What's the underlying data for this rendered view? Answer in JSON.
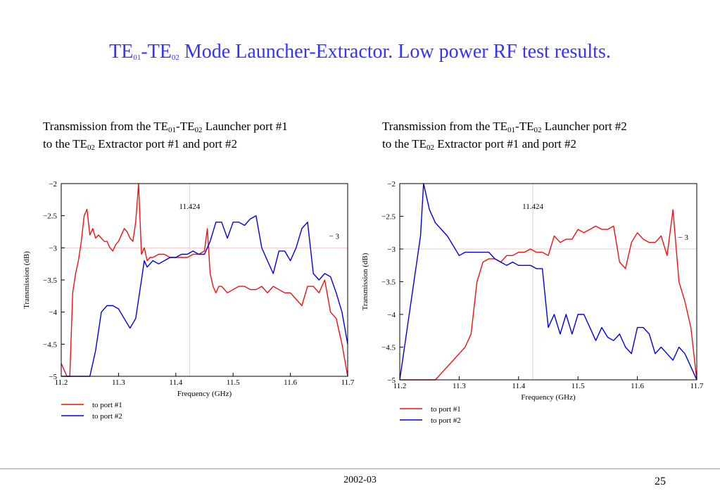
{
  "title": {
    "part1": "TE",
    "sub1": "01",
    "part2": "-TE",
    "sub2": "02",
    "part3": " Mode Launcher-Extractor. Low power RF test results."
  },
  "subtitles": [
    {
      "t1": "Transmission from the TE",
      "s1": "01",
      "t2": "-TE",
      "s2": "02",
      "t3": " Launcher port #1",
      "t4": "to the TE",
      "s3": "02",
      "t5": " Extractor port #1 and port #2"
    },
    {
      "t1": "Transmission from the TE",
      "s1": "01",
      "t2": "-TE",
      "s2": "02",
      "t3": " Launcher port #2",
      "t4": "to the TE",
      "s3": "02",
      "t5": " Extractor port #1 and port #2"
    }
  ],
  "colors": {
    "series1": "#ee1111",
    "series2": "#0000dd",
    "gridline": "#f0c8c8",
    "title": "#3333ff"
  },
  "chart_data": [
    {
      "type": "line",
      "xlabel": "Frequency (GHz)",
      "ylabel": "Transmission (dB)",
      "xlim": [
        11.2,
        11.7
      ],
      "ylim": [
        -5,
        -2
      ],
      "xticks": [
        "11.2",
        "11.3",
        "11.4",
        "11.5",
        "11.6",
        "11.7"
      ],
      "yticks": [
        "−2",
        "−2.5",
        "−3",
        "−3.5",
        "−4",
        "−4.5",
        "−5"
      ],
      "vline": {
        "x": 11.424,
        "label": "11.424"
      },
      "hline": {
        "y": -3,
        "label": "− 3"
      },
      "grid": false,
      "legend": "bottom-left",
      "series": [
        {
          "name": "to port #1",
          "x": [
            11.2,
            11.205,
            11.21,
            11.215,
            11.22,
            11.225,
            11.23,
            11.235,
            11.24,
            11.245,
            11.25,
            11.255,
            11.26,
            11.265,
            11.27,
            11.275,
            11.28,
            11.285,
            11.29,
            11.295,
            11.3,
            11.305,
            11.31,
            11.315,
            11.32,
            11.325,
            11.33,
            11.335,
            11.34,
            11.345,
            11.35,
            11.355,
            11.36,
            11.37,
            11.38,
            11.39,
            11.4,
            11.41,
            11.42,
            11.43,
            11.44,
            11.45,
            11.455,
            11.46,
            11.465,
            11.47,
            11.475,
            11.48,
            11.49,
            11.5,
            11.51,
            11.52,
            11.53,
            11.54,
            11.55,
            11.56,
            11.57,
            11.58,
            11.59,
            11.6,
            11.61,
            11.62,
            11.63,
            11.64,
            11.65,
            11.66,
            11.67,
            11.68,
            11.69,
            11.7
          ],
          "y": [
            -4.8,
            -4.9,
            -5,
            -5,
            -3.7,
            -3.4,
            -3.2,
            -2.9,
            -2.5,
            -2.4,
            -2.8,
            -2.7,
            -2.85,
            -2.8,
            -2.85,
            -2.9,
            -2.9,
            -3.0,
            -3.05,
            -2.95,
            -2.9,
            -2.8,
            -2.7,
            -2.75,
            -2.85,
            -2.9,
            -2.6,
            -2.0,
            -3.1,
            -3.0,
            -3.2,
            -3.15,
            -3.15,
            -3.1,
            -3.1,
            -3.15,
            -3.15,
            -3.15,
            -3.15,
            -3.1,
            -3.1,
            -3.05,
            -2.7,
            -3.4,
            -3.6,
            -3.7,
            -3.6,
            -3.6,
            -3.7,
            -3.65,
            -3.6,
            -3.6,
            -3.65,
            -3.65,
            -3.6,
            -3.7,
            -3.6,
            -3.65,
            -3.7,
            -3.7,
            -3.8,
            -3.9,
            -3.6,
            -3.6,
            -3.7,
            -3.5,
            -4.0,
            -4.1,
            -4.5,
            -5
          ]
        },
        {
          "name": "to port #2",
          "x": [
            11.2,
            11.23,
            11.25,
            11.26,
            11.27,
            11.28,
            11.29,
            11.3,
            11.31,
            11.32,
            11.33,
            11.34,
            11.345,
            11.35,
            11.36,
            11.37,
            11.38,
            11.39,
            11.4,
            11.41,
            11.42,
            11.43,
            11.44,
            11.45,
            11.46,
            11.47,
            11.48,
            11.49,
            11.5,
            11.51,
            11.52,
            11.53,
            11.54,
            11.55,
            11.56,
            11.57,
            11.58,
            11.59,
            11.6,
            11.61,
            11.62,
            11.63,
            11.64,
            11.65,
            11.66,
            11.67,
            11.68,
            11.69,
            11.7
          ],
          "y": [
            -5,
            -5,
            -5,
            -4.6,
            -4.0,
            -3.9,
            -3.9,
            -3.95,
            -4.1,
            -4.25,
            -4.1,
            -3.5,
            -3.2,
            -3.3,
            -3.2,
            -3.25,
            -3.2,
            -3.15,
            -3.15,
            -3.1,
            -3.1,
            -3.05,
            -3.1,
            -3.1,
            -2.9,
            -2.6,
            -2.6,
            -2.85,
            -2.6,
            -2.6,
            -2.65,
            -2.55,
            -2.5,
            -3.0,
            -3.2,
            -3.4,
            -3.05,
            -3.05,
            -3.2,
            -3.0,
            -2.7,
            -2.6,
            -3.4,
            -3.5,
            -3.4,
            -3.45,
            -3.7,
            -4.0,
            -4.5
          ]
        }
      ]
    },
    {
      "type": "line",
      "xlabel": "Frequency (GHz)",
      "ylabel": "Transmission (dB)",
      "xlim": [
        11.2,
        11.7
      ],
      "ylim": [
        -5,
        -2
      ],
      "xticks": [
        "11.2",
        "11.3",
        "11.4",
        "11.5",
        "11.6",
        "11.7"
      ],
      "yticks": [
        "−2",
        "−2.5",
        "−3",
        "−3.5",
        "−4",
        "−4.5",
        "−5"
      ],
      "vline": {
        "x": 11.424,
        "label": "11.424"
      },
      "hline": {
        "y": -3,
        "label": "− 3"
      },
      "grid": false,
      "legend": "bottom-left",
      "series": [
        {
          "name": "to port #1",
          "x": [
            11.2,
            11.24,
            11.26,
            11.27,
            11.28,
            11.29,
            11.3,
            11.31,
            11.32,
            11.33,
            11.34,
            11.35,
            11.36,
            11.37,
            11.38,
            11.39,
            11.4,
            11.41,
            11.42,
            11.43,
            11.44,
            11.45,
            11.46,
            11.47,
            11.48,
            11.49,
            11.5,
            11.51,
            11.52,
            11.53,
            11.54,
            11.55,
            11.56,
            11.57,
            11.58,
            11.59,
            11.6,
            11.61,
            11.62,
            11.63,
            11.64,
            11.65,
            11.66,
            11.67,
            11.68,
            11.69,
            11.7
          ],
          "y": [
            -5,
            -5,
            -5,
            -4.9,
            -4.8,
            -4.7,
            -4.6,
            -4.5,
            -4.3,
            -3.5,
            -3.2,
            -3.15,
            -3.15,
            -3.2,
            -3.1,
            -3.1,
            -3.05,
            -3.05,
            -3.0,
            -3.05,
            -3.05,
            -3.1,
            -2.8,
            -2.9,
            -2.85,
            -2.85,
            -2.7,
            -2.75,
            -2.7,
            -2.65,
            -2.7,
            -2.7,
            -2.65,
            -3.2,
            -3.3,
            -2.9,
            -2.75,
            -2.85,
            -2.9,
            -2.9,
            -2.8,
            -3.1,
            -2.4,
            -3.5,
            -3.8,
            -4.2,
            -5
          ]
        },
        {
          "name": "to port #2",
          "x": [
            11.2,
            11.235,
            11.24,
            11.25,
            11.26,
            11.27,
            11.28,
            11.29,
            11.3,
            11.31,
            11.32,
            11.33,
            11.34,
            11.35,
            11.36,
            11.37,
            11.38,
            11.39,
            11.4,
            11.41,
            11.42,
            11.43,
            11.44,
            11.45,
            11.46,
            11.47,
            11.48,
            11.49,
            11.5,
            11.51,
            11.52,
            11.53,
            11.54,
            11.55,
            11.56,
            11.57,
            11.58,
            11.59,
            11.6,
            11.61,
            11.62,
            11.63,
            11.64,
            11.65,
            11.66,
            11.67,
            11.68,
            11.69,
            11.7
          ],
          "y": [
            -5,
            -2.8,
            -2.0,
            -2.4,
            -2.6,
            -2.7,
            -2.8,
            -2.95,
            -3.1,
            -3.05,
            -3.05,
            -3.05,
            -3.05,
            -3.05,
            -3.15,
            -3.2,
            -3.25,
            -3.2,
            -3.25,
            -3.25,
            -3.25,
            -3.3,
            -3.3,
            -4.2,
            -4.0,
            -4.3,
            -4.0,
            -4.3,
            -4.0,
            -4.0,
            -4.2,
            -4.4,
            -4.2,
            -4.35,
            -4.4,
            -4.3,
            -4.5,
            -4.6,
            -4.2,
            -4.2,
            -4.3,
            -4.6,
            -4.5,
            -4.6,
            -4.7,
            -4.5,
            -4.6,
            -4.8,
            -5
          ]
        }
      ]
    }
  ],
  "footer": {
    "date": "2002-03",
    "page": "25"
  }
}
